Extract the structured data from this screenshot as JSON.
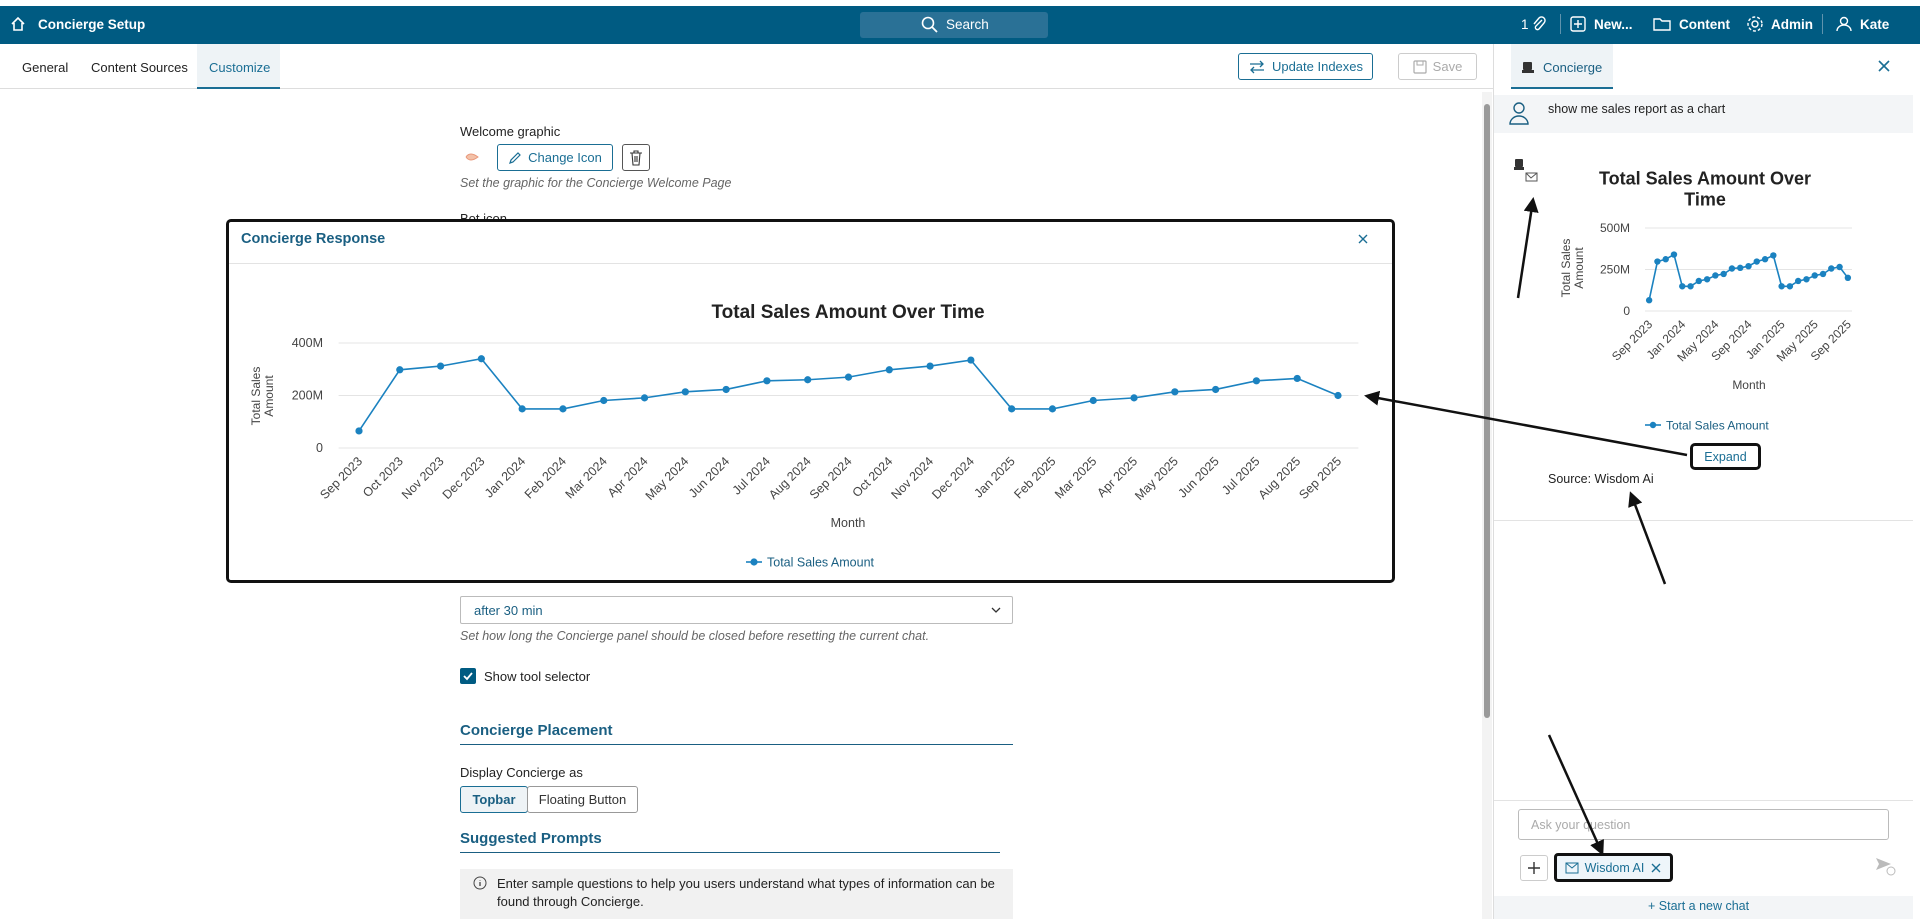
{
  "topbar": {
    "title": "Concierge Setup",
    "search": "Search",
    "attachments": "1",
    "new": "New...",
    "content": "Content",
    "admin": "Admin",
    "user": "Kate"
  },
  "tabs": [
    "General",
    "Content Sources",
    "Customize"
  ],
  "actions": {
    "update": "Update Indexes",
    "save": "Save"
  },
  "settings": {
    "welcome_label": "Welcome graphic",
    "change_icon": "Change Icon",
    "welcome_help": "Set the graphic for the Concierge Welcome Page",
    "bot_icon_label": "Bot icon",
    "reset_value": "after 30 min",
    "reset_help": "Set how long the Concierge panel should be closed before resetting the current chat.",
    "tool_selector": "Show tool selector",
    "placement_heading": "Concierge Placement",
    "display_label": "Display Concierge as",
    "display_options": [
      "Topbar",
      "Floating Button"
    ],
    "prompts_heading": "Suggested Prompts",
    "prompts_info": "Enter sample questions to help you users understand what types of information can be found through Concierge."
  },
  "modal": {
    "title": "Concierge Response",
    "chart": {
      "type": "line",
      "title": "Total Sales Amount Over Time",
      "x_label": "Month",
      "y_label": "Total Sales Amount",
      "categories": [
        "Sep 2023",
        "Oct 2023",
        "Nov 2023",
        "Dec 2023",
        "Jan 2024",
        "Feb 2024",
        "Mar 2024",
        "Apr 2024",
        "May 2024",
        "Jun 2024",
        "Jul 2024",
        "Aug 2024",
        "Sep 2024",
        "Oct 2024",
        "Nov 2024",
        "Dec 2024",
        "Jan 2025",
        "Feb 2025",
        "Mar 2025",
        "Apr 2025",
        "May 2025",
        "Jun 2025",
        "Jul 2025",
        "Aug 2025",
        "Sep 2025"
      ],
      "series": [
        {
          "name": "Total Sales Amount",
          "color": "#1b82c0",
          "values": [
            65000000,
            298000000,
            312000000,
            340000000,
            149000000,
            149000000,
            181000000,
            191000000,
            214000000,
            223000000,
            256000000,
            260000000,
            270000000,
            298000000,
            312000000,
            335000000,
            149000000,
            149000000,
            181000000,
            191000000,
            214000000,
            223000000,
            256000000,
            265000000,
            200000000
          ]
        }
      ],
      "ylim": [
        0,
        400000000
      ],
      "yticks": [
        {
          "value": 0,
          "label": "0"
        },
        {
          "value": 200000000,
          "label": "200M"
        },
        {
          "value": 400000000,
          "label": "400M"
        }
      ],
      "grid": true,
      "legend": "bottom"
    }
  },
  "panel": {
    "title": "Concierge",
    "user_message": "show me sales report as a chart",
    "chart": {
      "type": "line",
      "title": "Total Sales Amount Over Time",
      "x_label": "Month",
      "y_label": "Total Sales Amount",
      "categories": [
        "Sep 2023",
        null,
        null,
        null,
        "Jan 2024",
        null,
        null,
        null,
        "May 2024",
        null,
        null,
        null,
        "Sep 2024",
        null,
        null,
        null,
        "Jan 2025",
        null,
        null,
        null,
        "May 2025",
        null,
        null,
        null,
        "Sep 2025"
      ],
      "series": [
        {
          "name": "Total Sales Amount",
          "color": "#1b82c0",
          "values": [
            65000000,
            298000000,
            312000000,
            340000000,
            149000000,
            149000000,
            181000000,
            191000000,
            214000000,
            223000000,
            256000000,
            260000000,
            270000000,
            298000000,
            312000000,
            335000000,
            149000000,
            149000000,
            181000000,
            191000000,
            214000000,
            223000000,
            256000000,
            265000000,
            200000000
          ]
        }
      ],
      "ylim": [
        0,
        500000000
      ],
      "yticks": [
        {
          "value": 0,
          "label": "0"
        },
        {
          "value": 250000000,
          "label": "250M"
        },
        {
          "value": 500000000,
          "label": "500M"
        }
      ],
      "grid": true,
      "legend": "bottom"
    },
    "expand": "Expand",
    "source": "Source: Wisdom Ai",
    "input_placeholder": "Ask your question",
    "tool_chip": "Wisdom AI",
    "new_chat": "Start a new chat"
  }
}
